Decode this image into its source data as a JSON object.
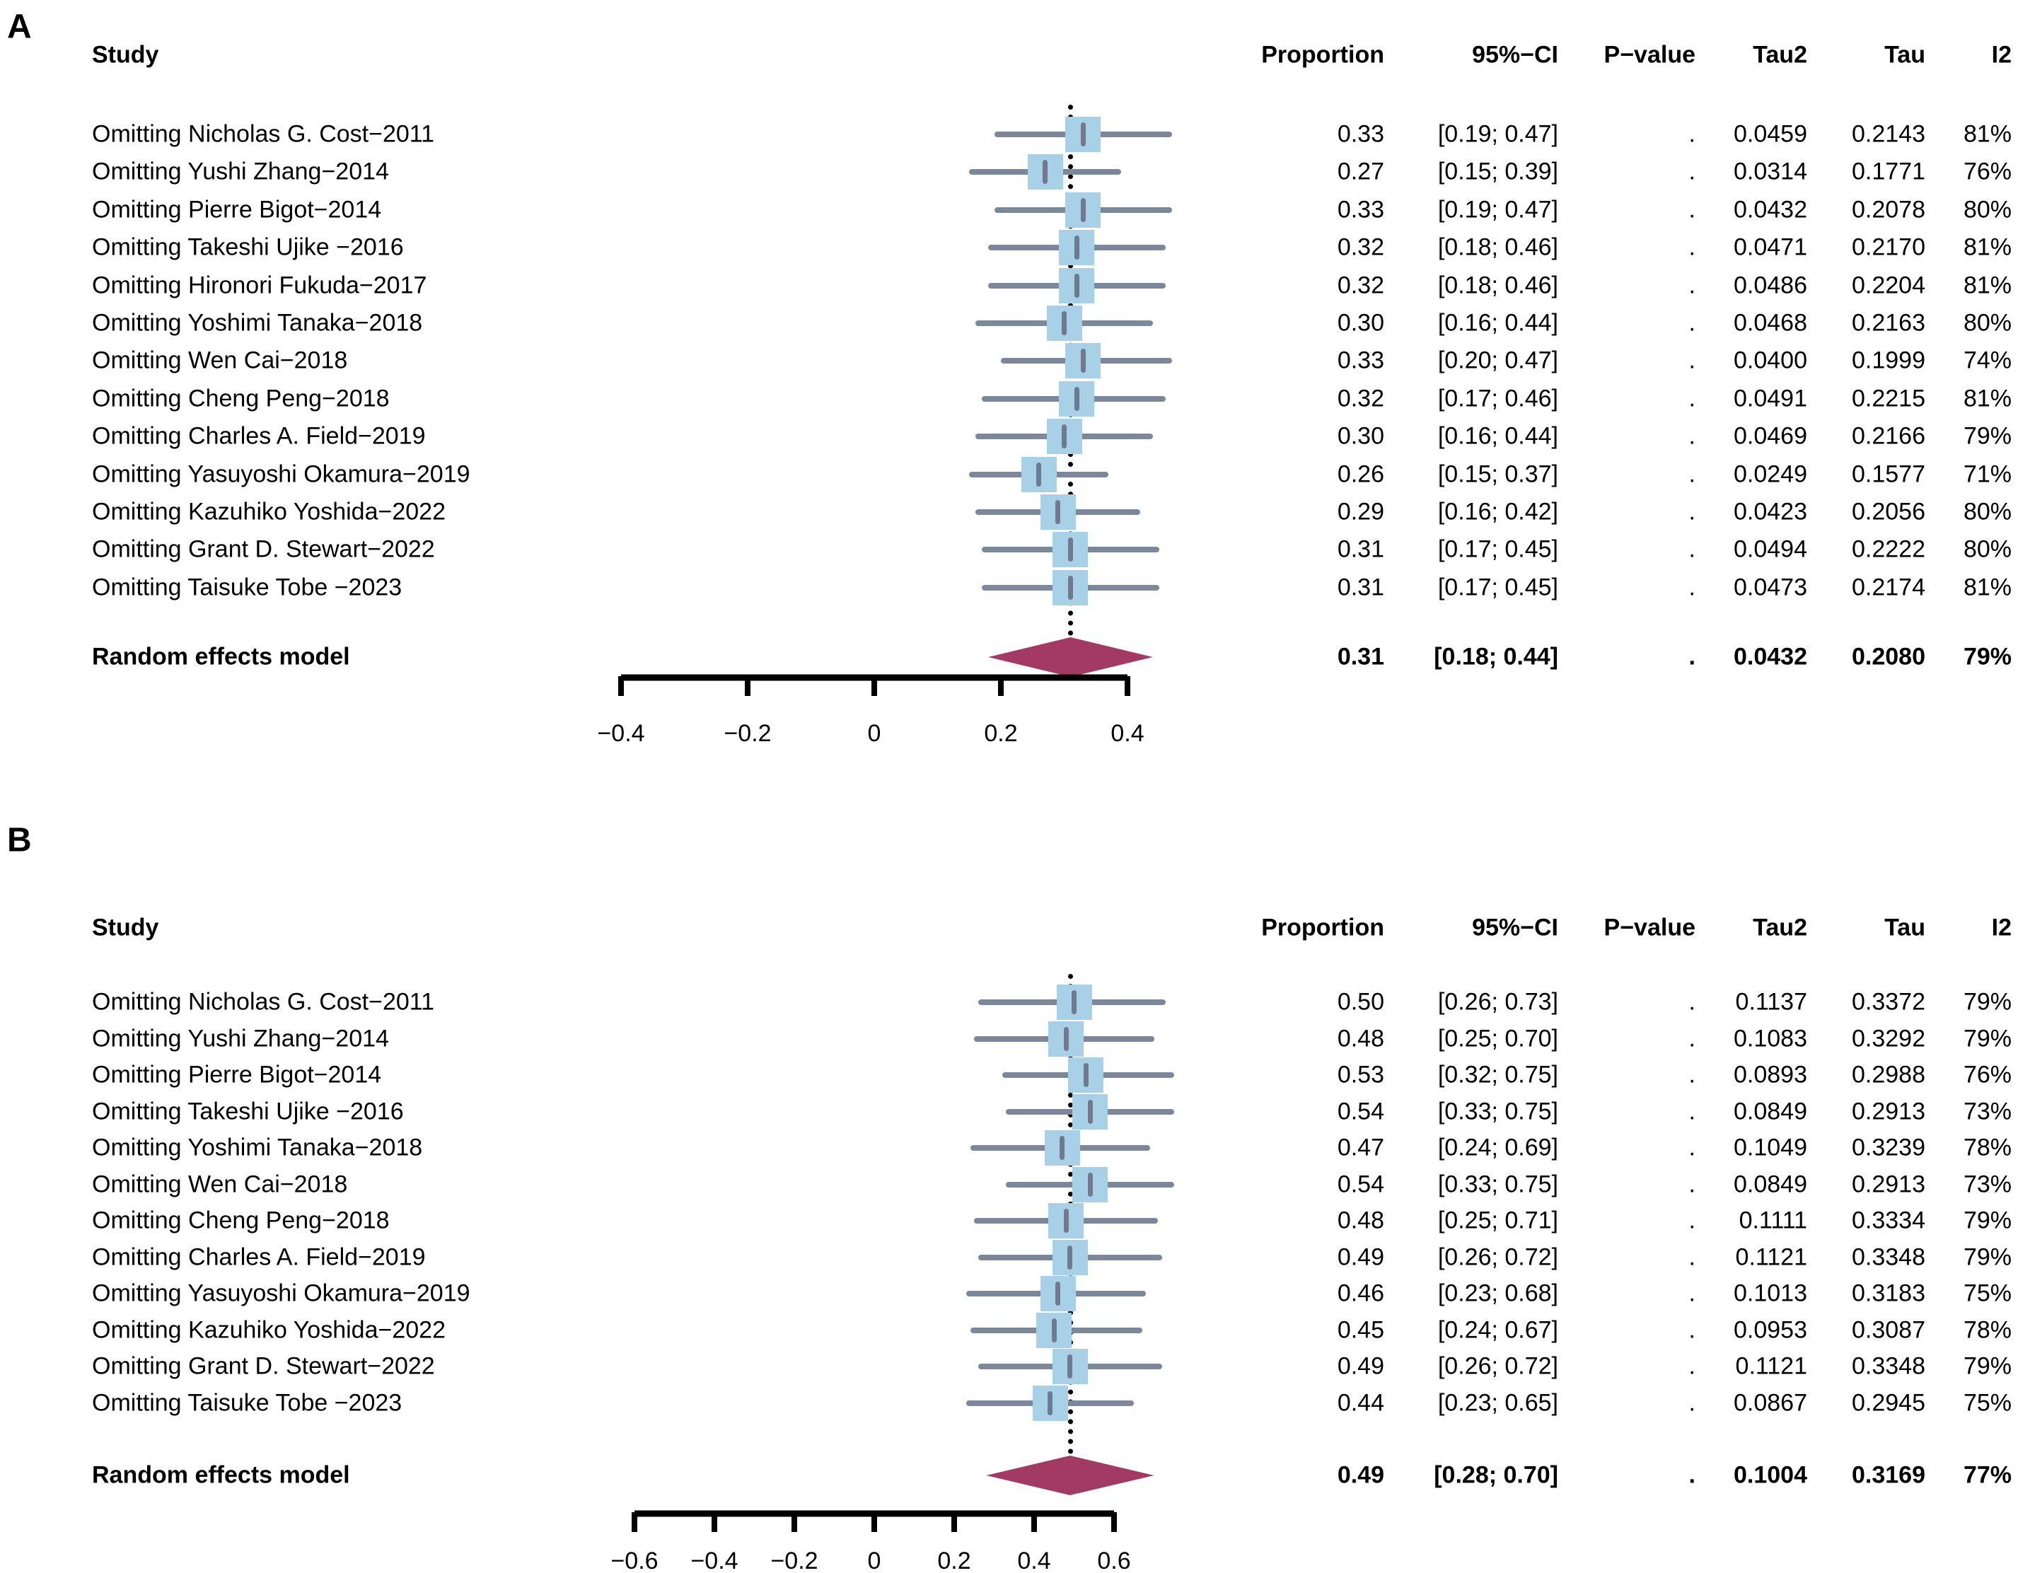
{
  "figure": {
    "description": "Leave-one-out sensitivity analysis forest plots, panels A and B",
    "colors": {
      "square_fill": "#A8D1E8",
      "ci_line": "#7C879B",
      "estimate_tick": "#6F7A8E",
      "diamond_fill": "#A23A64",
      "reference_line": "#000000",
      "axis": "#000000",
      "text": "#000000"
    }
  },
  "chart_data": [
    {
      "panel_label": "A",
      "type": "scatter",
      "subtype": "forest_plot_leave_one_out",
      "study_header": "Study",
      "column_headers": [
        "Proportion",
        "95%−CI",
        "P−value",
        "Tau2",
        "Tau",
        "I2"
      ],
      "x_axis": {
        "tick_labels": [
          "−0.4",
          "−0.2",
          "0",
          "0.2",
          "0.4"
        ],
        "tick_values": [
          -0.4,
          -0.2,
          0,
          0.2,
          0.4
        ],
        "range": [
          -0.4,
          0.4
        ],
        "grid": false
      },
      "reference_line_x": 0.31,
      "rows": [
        {
          "study": "Omitting Nicholas G. Cost−2011",
          "proportion": "0.33",
          "est": 0.33,
          "lo": 0.19,
          "hi": 0.47,
          "ci": "[0.19; 0.47]",
          "pvalue": ".",
          "tau2": "0.0459",
          "tau": "0.2143",
          "i2": "81%"
        },
        {
          "study": "Omitting Yushi Zhang−2014",
          "proportion": "0.27",
          "est": 0.27,
          "lo": 0.15,
          "hi": 0.39,
          "ci": "[0.15; 0.39]",
          "pvalue": ".",
          "tau2": "0.0314",
          "tau": "0.1771",
          "i2": "76%"
        },
        {
          "study": "Omitting Pierre Bigot−2014",
          "proportion": "0.33",
          "est": 0.33,
          "lo": 0.19,
          "hi": 0.47,
          "ci": "[0.19; 0.47]",
          "pvalue": ".",
          "tau2": "0.0432",
          "tau": "0.2078",
          "i2": "80%"
        },
        {
          "study": "Omitting Takeshi Ujike −2016",
          "proportion": "0.32",
          "est": 0.32,
          "lo": 0.18,
          "hi": 0.46,
          "ci": "[0.18; 0.46]",
          "pvalue": ".",
          "tau2": "0.0471",
          "tau": "0.2170",
          "i2": "81%"
        },
        {
          "study": "Omitting Hironori Fukuda−2017",
          "proportion": "0.32",
          "est": 0.32,
          "lo": 0.18,
          "hi": 0.46,
          "ci": "[0.18; 0.46]",
          "pvalue": ".",
          "tau2": "0.0486",
          "tau": "0.2204",
          "i2": "81%"
        },
        {
          "study": "Omitting Yoshimi Tanaka−2018",
          "proportion": "0.30",
          "est": 0.3,
          "lo": 0.16,
          "hi": 0.44,
          "ci": "[0.16; 0.44]",
          "pvalue": ".",
          "tau2": "0.0468",
          "tau": "0.2163",
          "i2": "80%"
        },
        {
          "study": "Omitting Wen Cai−2018",
          "proportion": "0.33",
          "est": 0.33,
          "lo": 0.2,
          "hi": 0.47,
          "ci": "[0.20; 0.47]",
          "pvalue": ".",
          "tau2": "0.0400",
          "tau": "0.1999",
          "i2": "74%"
        },
        {
          "study": "Omitting Cheng Peng−2018",
          "proportion": "0.32",
          "est": 0.32,
          "lo": 0.17,
          "hi": 0.46,
          "ci": "[0.17; 0.46]",
          "pvalue": ".",
          "tau2": "0.0491",
          "tau": "0.2215",
          "i2": "81%"
        },
        {
          "study": "Omitting Charles A. Field−2019",
          "proportion": "0.30",
          "est": 0.3,
          "lo": 0.16,
          "hi": 0.44,
          "ci": "[0.16; 0.44]",
          "pvalue": ".",
          "tau2": "0.0469",
          "tau": "0.2166",
          "i2": "79%"
        },
        {
          "study": "Omitting Yasuyoshi Okamura−2019",
          "proportion": "0.26",
          "est": 0.26,
          "lo": 0.15,
          "hi": 0.37,
          "ci": "[0.15; 0.37]",
          "pvalue": ".",
          "tau2": "0.0249",
          "tau": "0.1577",
          "i2": "71%"
        },
        {
          "study": "Omitting Kazuhiko Yoshida−2022",
          "proportion": "0.29",
          "est": 0.29,
          "lo": 0.16,
          "hi": 0.42,
          "ci": "[0.16; 0.42]",
          "pvalue": ".",
          "tau2": "0.0423",
          "tau": "0.2056",
          "i2": "80%"
        },
        {
          "study": "Omitting Grant D. Stewart−2022",
          "proportion": "0.31",
          "est": 0.31,
          "lo": 0.17,
          "hi": 0.45,
          "ci": "[0.17; 0.45]",
          "pvalue": ".",
          "tau2": "0.0494",
          "tau": "0.2222",
          "i2": "80%"
        },
        {
          "study": "Omitting Taisuke Tobe −2023",
          "proportion": "0.31",
          "est": 0.31,
          "lo": 0.17,
          "hi": 0.45,
          "ci": "[0.17; 0.45]",
          "pvalue": ".",
          "tau2": "0.0473",
          "tau": "0.2174",
          "i2": "81%"
        }
      ],
      "summary": {
        "study": "Random effects model",
        "proportion": "0.31",
        "est": 0.31,
        "lo": 0.18,
        "hi": 0.44,
        "ci": "[0.18; 0.44]",
        "pvalue": ".",
        "tau2": "0.0432",
        "tau": "0.2080",
        "i2": "79%"
      }
    },
    {
      "panel_label": "B",
      "type": "scatter",
      "subtype": "forest_plot_leave_one_out",
      "study_header": "Study",
      "column_headers": [
        "Proportion",
        "95%−CI",
        "P−value",
        "Tau2",
        "Tau",
        "I2"
      ],
      "x_axis": {
        "tick_labels": [
          "−0.6",
          "−0.4",
          "−0.2",
          "0",
          "0.2",
          "0.4",
          "0.6"
        ],
        "tick_values": [
          -0.6,
          -0.4,
          -0.2,
          0,
          0.2,
          0.4,
          0.6
        ],
        "range": [
          -0.6,
          0.6
        ],
        "grid": false
      },
      "reference_line_x": 0.49,
      "rows": [
        {
          "study": "Omitting Nicholas G. Cost−2011",
          "proportion": "0.50",
          "est": 0.5,
          "lo": 0.26,
          "hi": 0.73,
          "ci": "[0.26; 0.73]",
          "pvalue": ".",
          "tau2": "0.1137",
          "tau": "0.3372",
          "i2": "79%"
        },
        {
          "study": "Omitting Yushi Zhang−2014",
          "proportion": "0.48",
          "est": 0.48,
          "lo": 0.25,
          "hi": 0.7,
          "ci": "[0.25; 0.70]",
          "pvalue": ".",
          "tau2": "0.1083",
          "tau": "0.3292",
          "i2": "79%"
        },
        {
          "study": "Omitting Pierre Bigot−2014",
          "proportion": "0.53",
          "est": 0.53,
          "lo": 0.32,
          "hi": 0.75,
          "ci": "[0.32; 0.75]",
          "pvalue": ".",
          "tau2": "0.0893",
          "tau": "0.2988",
          "i2": "76%"
        },
        {
          "study": "Omitting Takeshi Ujike −2016",
          "proportion": "0.54",
          "est": 0.54,
          "lo": 0.33,
          "hi": 0.75,
          "ci": "[0.33; 0.75]",
          "pvalue": ".",
          "tau2": "0.0849",
          "tau": "0.2913",
          "i2": "73%"
        },
        {
          "study": "Omitting Yoshimi Tanaka−2018",
          "proportion": "0.47",
          "est": 0.47,
          "lo": 0.24,
          "hi": 0.69,
          "ci": "[0.24; 0.69]",
          "pvalue": ".",
          "tau2": "0.1049",
          "tau": "0.3239",
          "i2": "78%"
        },
        {
          "study": "Omitting Wen Cai−2018",
          "proportion": "0.54",
          "est": 0.54,
          "lo": 0.33,
          "hi": 0.75,
          "ci": "[0.33; 0.75]",
          "pvalue": ".",
          "tau2": "0.0849",
          "tau": "0.2913",
          "i2": "73%"
        },
        {
          "study": "Omitting Cheng Peng−2018",
          "proportion": "0.48",
          "est": 0.48,
          "lo": 0.25,
          "hi": 0.71,
          "ci": "[0.25; 0.71]",
          "pvalue": ".",
          "tau2": "0.1111",
          "tau": "0.3334",
          "i2": "79%"
        },
        {
          "study": "Omitting Charles A. Field−2019",
          "proportion": "0.49",
          "est": 0.49,
          "lo": 0.26,
          "hi": 0.72,
          "ci": "[0.26; 0.72]",
          "pvalue": ".",
          "tau2": "0.1121",
          "tau": "0.3348",
          "i2": "79%"
        },
        {
          "study": "Omitting Yasuyoshi Okamura−2019",
          "proportion": "0.46",
          "est": 0.46,
          "lo": 0.23,
          "hi": 0.68,
          "ci": "[0.23; 0.68]",
          "pvalue": ".",
          "tau2": "0.1013",
          "tau": "0.3183",
          "i2": "75%"
        },
        {
          "study": "Omitting Kazuhiko Yoshida−2022",
          "proportion": "0.45",
          "est": 0.45,
          "lo": 0.24,
          "hi": 0.67,
          "ci": "[0.24; 0.67]",
          "pvalue": ".",
          "tau2": "0.0953",
          "tau": "0.3087",
          "i2": "78%"
        },
        {
          "study": "Omitting Grant D. Stewart−2022",
          "proportion": "0.49",
          "est": 0.49,
          "lo": 0.26,
          "hi": 0.72,
          "ci": "[0.26; 0.72]",
          "pvalue": ".",
          "tau2": "0.1121",
          "tau": "0.3348",
          "i2": "79%"
        },
        {
          "study": "Omitting Taisuke Tobe −2023",
          "proportion": "0.44",
          "est": 0.44,
          "lo": 0.23,
          "hi": 0.65,
          "ci": "[0.23; 0.65]",
          "pvalue": ".",
          "tau2": "0.0867",
          "tau": "0.2945",
          "i2": "75%"
        }
      ],
      "summary": {
        "study": "Random effects model",
        "proportion": "0.49",
        "est": 0.49,
        "lo": 0.28,
        "hi": 0.7,
        "ci": "[0.28; 0.70]",
        "pvalue": ".",
        "tau2": "0.1004",
        "tau": "0.3169",
        "i2": "77%"
      }
    }
  ]
}
